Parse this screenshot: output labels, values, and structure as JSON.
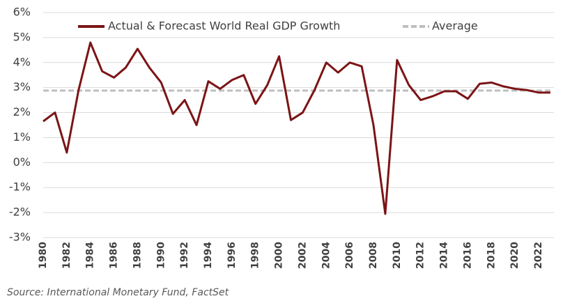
{
  "chart_data": {
    "type": "line",
    "x": [
      1980,
      1981,
      1982,
      1983,
      1984,
      1985,
      1986,
      1987,
      1988,
      1989,
      1990,
      1991,
      1992,
      1993,
      1994,
      1995,
      1996,
      1997,
      1998,
      1999,
      2000,
      2001,
      2002,
      2003,
      2004,
      2005,
      2006,
      2007,
      2008,
      2009,
      2010,
      2011,
      2012,
      2013,
      2014,
      2015,
      2016,
      2017,
      2018,
      2019,
      2020,
      2021,
      2022,
      2023
    ],
    "series": [
      {
        "name": "Actual & Forecast World Real GDP Growth",
        "color": "#7b1416",
        "dashed": false,
        "values": [
          1.65,
          2.0,
          0.4,
          2.9,
          4.8,
          3.65,
          3.4,
          3.8,
          4.55,
          3.8,
          3.2,
          1.95,
          2.5,
          1.5,
          3.25,
          2.95,
          3.3,
          3.5,
          2.35,
          3.1,
          4.25,
          1.7,
          2.0,
          2.9,
          4.0,
          3.6,
          4.0,
          3.85,
          1.5,
          -2.05,
          4.1,
          3.1,
          2.5,
          2.65,
          2.85,
          2.85,
          2.55,
          3.15,
          3.2,
          3.05,
          2.95,
          2.9,
          2.8,
          2.8
        ]
      },
      {
        "name": "Average",
        "color": "#bfbfbf",
        "dashed": true,
        "values": [
          2.88,
          2.88,
          2.88,
          2.88,
          2.88,
          2.88,
          2.88,
          2.88,
          2.88,
          2.88,
          2.88,
          2.88,
          2.88,
          2.88,
          2.88,
          2.88,
          2.88,
          2.88,
          2.88,
          2.88,
          2.88,
          2.88,
          2.88,
          2.88,
          2.88,
          2.88,
          2.88,
          2.88,
          2.88,
          2.88,
          2.88,
          2.88,
          2.88,
          2.88,
          2.88,
          2.88,
          2.88,
          2.88,
          2.88,
          2.88,
          2.88,
          2.88,
          2.88,
          2.88
        ]
      }
    ],
    "xlim": [
      1980,
      2023.3
    ],
    "xticks": [
      1980,
      1982,
      1984,
      1986,
      1988,
      1990,
      1992,
      1994,
      1996,
      1998,
      2000,
      2002,
      2004,
      2006,
      2008,
      2010,
      2012,
      2014,
      2016,
      2018,
      2020,
      2022
    ],
    "ylim": [
      -3,
      6
    ],
    "yticks": [
      {
        "value": -3,
        "label": "-3%"
      },
      {
        "value": -2,
        "label": "-2%"
      },
      {
        "value": -1,
        "label": "-1%"
      },
      {
        "value": 0,
        "label": "0%"
      },
      {
        "value": 1,
        "label": "1%"
      },
      {
        "value": 2,
        "label": "2%"
      },
      {
        "value": 3,
        "label": "3%"
      },
      {
        "value": 4,
        "label": "4%"
      },
      {
        "value": 5,
        "label": "5%"
      },
      {
        "value": 6,
        "label": "6%"
      }
    ],
    "grid": true,
    "legend": "top",
    "source": "Source: International Monetary Fund, FactSet"
  }
}
